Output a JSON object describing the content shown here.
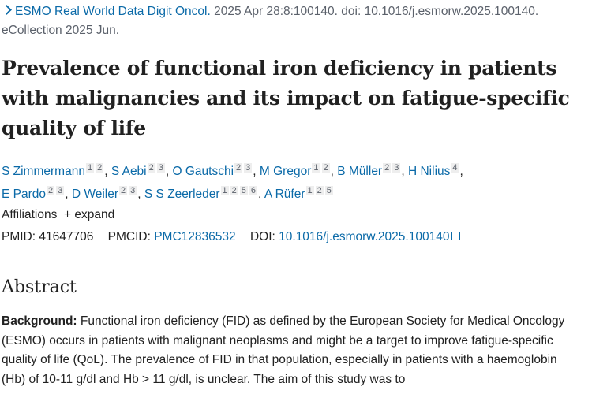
{
  "citation": {
    "journal": "ESMO Real World Data Digit Oncol.",
    "details": " 2025 Apr 28:8:100140. doi: 10.1016/j.esmorw.2025.100140.",
    "line2": "eCollection 2025 Jun."
  },
  "title": "Prevalence of functional iron deficiency in patients with malignancies and its impact on fatigue-specific quality of life",
  "authors": [
    {
      "name": "S Zimmermann",
      "aff": [
        "1",
        "2"
      ]
    },
    {
      "name": "S Aebi",
      "aff": [
        "2",
        "3"
      ]
    },
    {
      "name": "O Gautschi",
      "aff": [
        "2",
        "3"
      ]
    },
    {
      "name": "M Gregor",
      "aff": [
        "1",
        "2"
      ]
    },
    {
      "name": "B Müller",
      "aff": [
        "2",
        "3"
      ]
    },
    {
      "name": "H Nilius",
      "aff": [
        "4"
      ]
    },
    {
      "name": "E Pardo",
      "aff": [
        "2",
        "3"
      ]
    },
    {
      "name": "D Weiler",
      "aff": [
        "2",
        "3"
      ]
    },
    {
      "name": "S S Zeerleder",
      "aff": [
        "1",
        "2",
        "5",
        "6"
      ]
    },
    {
      "name": "A Rüfer",
      "aff": [
        "1",
        "2",
        "5"
      ]
    }
  ],
  "affiliations": {
    "label": "Affiliations",
    "expand": "+ expand"
  },
  "ids": {
    "pmid_label": "PMID:",
    "pmid": "41647706",
    "pmcid_label": "PMCID:",
    "pmcid": "PMC12836532",
    "doi_label": "DOI:",
    "doi": "10.1016/j.esmorw.2025.100140"
  },
  "abstract": {
    "heading": "Abstract",
    "bg_label": "Background:",
    "bg_text": " Functional iron deficiency (FID) as defined by the European Society for Medical Oncology (ESMO) occurs in patients with malignant neoplasms and might be a target to improve fatigue-specific quality of life (QoL). The prevalence of FID in that population, especially in patients with a haemoglobin (Hb) of 10-11 g/dl and Hb > 11 g/dl, is unclear. The aim of this study was to"
  }
}
